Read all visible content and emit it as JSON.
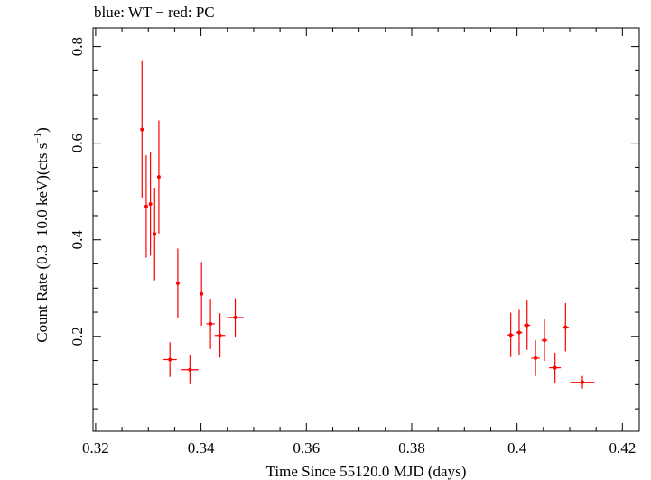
{
  "chart_data": {
    "type": "scatter",
    "title": "blue: WT − red: PC",
    "xlabel": "Time Since 55120.0 MJD (days)",
    "ylabel_main": "Count Rate (0.3−10.0 keV)(cts s",
    "ylabel_sup": "−1",
    "ylabel_tail": ")",
    "xlim": [
      0.3195,
      0.4232
    ],
    "ylim": [
      0.0035,
      0.8385
    ],
    "x_ticks": [
      {
        "value": 0.32,
        "label": "0.32"
      },
      {
        "value": 0.34,
        "label": "0.34"
      },
      {
        "value": 0.36,
        "label": "0.36"
      },
      {
        "value": 0.38,
        "label": "0.38"
      },
      {
        "value": 0.4,
        "label": "0.4"
      },
      {
        "value": 0.42,
        "label": "0.42"
      }
    ],
    "y_ticks": [
      {
        "value": 0.2,
        "label": "0.2"
      },
      {
        "value": 0.4,
        "label": "0.4"
      },
      {
        "value": 0.6,
        "label": "0.6"
      },
      {
        "value": 0.8,
        "label": "0.8"
      }
    ],
    "grid": false,
    "colors": {
      "pc": "#ff0000",
      "axis": "#000000"
    },
    "series": [
      {
        "name": "PC",
        "color": "#ff0000",
        "points": [
          {
            "x": 0.3288,
            "xerr": 0.0002,
            "y": 0.628,
            "yerr": 0.142
          },
          {
            "x": 0.3296,
            "xerr": 0.0002,
            "y": 0.469,
            "yerr": 0.106
          },
          {
            "x": 0.3304,
            "xerr": 0.0002,
            "y": 0.474,
            "yerr": 0.107
          },
          {
            "x": 0.3312,
            "xerr": 0.0003,
            "y": 0.412,
            "yerr": 0.096
          },
          {
            "x": 0.332,
            "xerr": 0.0002,
            "y": 0.53,
            "yerr": 0.117
          },
          {
            "x": 0.3341,
            "xerr": 0.0013,
            "y": 0.152,
            "yerr": 0.036
          },
          {
            "x": 0.3356,
            "xerr": 0.0003,
            "y": 0.31,
            "yerr": 0.072
          },
          {
            "x": 0.3379,
            "xerr": 0.0016,
            "y": 0.131,
            "yerr": 0.03
          },
          {
            "x": 0.3401,
            "xerr": 0.0003,
            "y": 0.288,
            "yerr": 0.066
          },
          {
            "x": 0.3418,
            "xerr": 0.0008,
            "y": 0.226,
            "yerr": 0.052
          },
          {
            "x": 0.3436,
            "xerr": 0.001,
            "y": 0.202,
            "yerr": 0.046
          },
          {
            "x": 0.3465,
            "xerr": 0.0016,
            "y": 0.239,
            "yerr": 0.04
          },
          {
            "x": 0.3988,
            "xerr": 0.0006,
            "y": 0.203,
            "yerr": 0.046
          },
          {
            "x": 0.4004,
            "xerr": 0.0006,
            "y": 0.208,
            "yerr": 0.047
          },
          {
            "x": 0.4019,
            "xerr": 0.0006,
            "y": 0.223,
            "yerr": 0.051
          },
          {
            "x": 0.4035,
            "xerr": 0.0008,
            "y": 0.155,
            "yerr": 0.037
          },
          {
            "x": 0.4052,
            "xerr": 0.0006,
            "y": 0.192,
            "yerr": 0.043
          },
          {
            "x": 0.4072,
            "xerr": 0.0011,
            "y": 0.135,
            "yerr": 0.031
          },
          {
            "x": 0.4092,
            "xerr": 0.0006,
            "y": 0.219,
            "yerr": 0.05
          },
          {
            "x": 0.4124,
            "xerr": 0.0023,
            "y": 0.105,
            "yerr": 0.013
          }
        ]
      }
    ]
  }
}
